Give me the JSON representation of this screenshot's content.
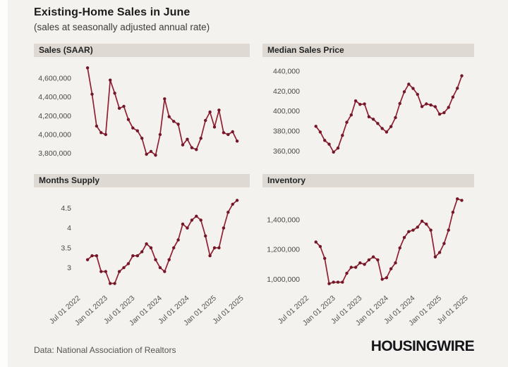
{
  "title": "Existing-Home Sales in June",
  "subtitle": "(sales at seasonally adjusted annual rate)",
  "footer": {
    "source": "Data: National Association of Realtors",
    "brand": "HOUSINGWIRE"
  },
  "colors": {
    "background": "#f4f2ee",
    "panel_header_bg": "#dedad3",
    "line": "#8f2033",
    "marker": "#731628",
    "axis_text": "#4b4743"
  },
  "x_axis": {
    "tick_labels": [
      "Jul 01 2022",
      "Jan 01 2023",
      "Jul 01 2023",
      "Jan 01 2024",
      "Jul 01 2024",
      "Jan 01 2025",
      "Jul 01 2025"
    ],
    "ticks": [
      {
        "label": "Jul 01 2022",
        "m": -2
      },
      {
        "label": "Jan 01 2023",
        "m": 4
      },
      {
        "label": "Jul 01 2023",
        "m": 10
      },
      {
        "label": "Jan 01 2024",
        "m": 16
      },
      {
        "label": "Jul 01 2024",
        "m": 22
      },
      {
        "label": "Jan 01 2025",
        "m": 28
      },
      {
        "label": "Jul 01 2025",
        "m": 34
      }
    ]
  },
  "chart_data": [
    {
      "type": "line",
      "title": "Sales (SAAR)",
      "x_start": "2022-09",
      "x_freq": "monthly",
      "values": [
        4710000,
        4430000,
        4090000,
        4020000,
        4000000,
        4580000,
        4440000,
        4280000,
        4300000,
        4160000,
        4070000,
        4040000,
        3960000,
        3790000,
        3820000,
        3780000,
        4000000,
        4380000,
        4190000,
        4140000,
        4110000,
        3890000,
        3950000,
        3860000,
        3840000,
        3960000,
        4150000,
        4240000,
        4080000,
        4260000,
        4020000,
        4000000,
        4030000,
        3930000
      ],
      "ylim": [
        3760000,
        4750000
      ],
      "yticks": [
        4600000,
        4400000,
        4200000,
        4000000,
        3800000
      ],
      "ytick_labels": [
        "4,600,000",
        "4,400,000",
        "4,200,000",
        "4,000,000",
        "3,800,000"
      ],
      "show_x_labels": false,
      "grid": false,
      "legend": "none"
    },
    {
      "type": "line",
      "title": "Median Sales Price",
      "x_start": "2022-09",
      "x_freq": "monthly",
      "values": [
        384800,
        379100,
        370700,
        366900,
        359000,
        363000,
        375700,
        388800,
        396100,
        410200,
        406700,
        407100,
        394300,
        391800,
        387600,
        382600,
        379100,
        384500,
        393500,
        407600,
        419300,
        426900,
        422600,
        416700,
        404500,
        407200,
        406100,
        404400,
        396900,
        398400,
        403700,
        414000,
        422800,
        435300
      ],
      "ylim": [
        354000,
        447000
      ],
      "yticks": [
        440000,
        420000,
        400000,
        380000,
        360000
      ],
      "ytick_labels": [
        "440,000",
        "420,000",
        "400,000",
        "380,000",
        "360,000"
      ],
      "show_x_labels": false,
      "grid": false,
      "legend": "none"
    },
    {
      "type": "line",
      "title": "Months Supply",
      "x_start": "2022-09",
      "x_freq": "monthly",
      "values": [
        3.2,
        3.3,
        3.3,
        2.9,
        2.9,
        2.6,
        2.6,
        2.9,
        3.0,
        3.1,
        3.3,
        3.3,
        3.4,
        3.6,
        3.5,
        3.2,
        3.0,
        2.9,
        3.2,
        3.5,
        3.7,
        4.1,
        4.0,
        4.2,
        4.3,
        4.2,
        3.8,
        3.3,
        3.5,
        3.5,
        4.0,
        4.4,
        4.6,
        4.7
      ],
      "ylim": [
        2.5,
        4.85
      ],
      "yticks": [
        4.5,
        4,
        3.5,
        3
      ],
      "ytick_labels": [
        "4.5",
        "4",
        "3.5",
        "3"
      ],
      "show_x_labels": true,
      "grid": false,
      "legend": "none"
    },
    {
      "type": "line",
      "title": "Inventory",
      "x_start": "2022-09",
      "x_freq": "monthly",
      "values": [
        1250000,
        1220000,
        1140000,
        970000,
        980000,
        980000,
        980000,
        1040000,
        1080000,
        1080000,
        1110000,
        1100000,
        1130000,
        1150000,
        1130000,
        1000000,
        1010000,
        1070000,
        1110000,
        1210000,
        1280000,
        1320000,
        1330000,
        1350000,
        1390000,
        1370000,
        1330000,
        1150000,
        1180000,
        1240000,
        1330000,
        1450000,
        1540000,
        1530000
      ],
      "ylim": [
        945000,
        1570000
      ],
      "yticks": [
        1400000,
        1200000,
        1000000
      ],
      "ytick_labels": [
        "1,400,000",
        "1,200,000",
        "1,000,000"
      ],
      "show_x_labels": true,
      "grid": false,
      "legend": "none"
    }
  ]
}
